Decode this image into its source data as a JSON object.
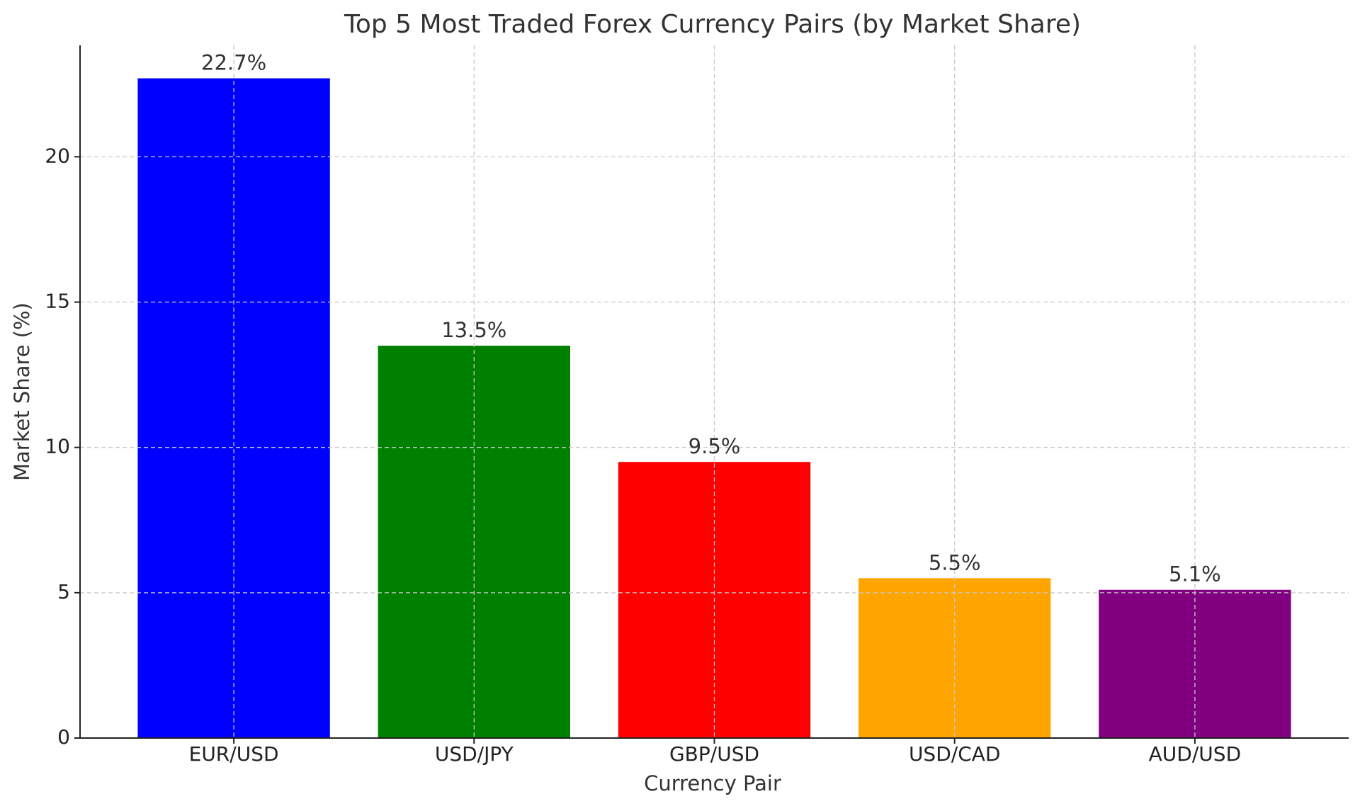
{
  "chart_data": {
    "type": "bar",
    "title": "Top 5 Most Traded Forex Currency Pairs (by Market Share)",
    "x_label": "Currency Pair",
    "y_label": "Market Share (%)",
    "categories": [
      "EUR/USD",
      "USD/JPY",
      "GBP/USD",
      "USD/CAD",
      "AUD/USD"
    ],
    "values": [
      22.7,
      13.5,
      9.5,
      5.5,
      5.1
    ],
    "value_labels": [
      "22.7%",
      "13.5%",
      "9.5%",
      "5.5%",
      "5.1%"
    ],
    "colors": [
      "#0000ff",
      "#008000",
      "#ff0000",
      "#ffa500",
      "#800080"
    ],
    "ylim": [
      0,
      23.835
    ],
    "yticks": [
      0,
      5,
      10,
      15,
      20
    ],
    "grid": true
  }
}
